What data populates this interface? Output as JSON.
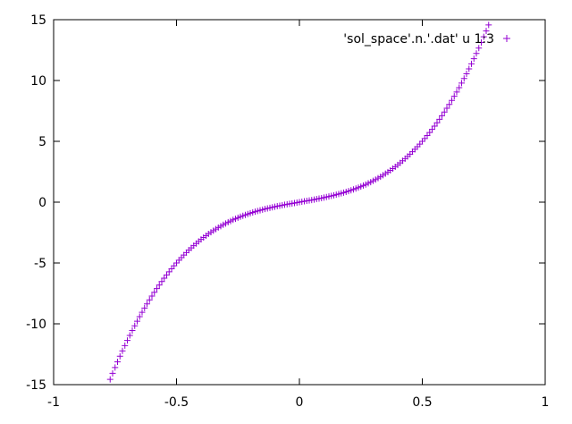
{
  "chart_data": {
    "type": "scatter",
    "marker": "+",
    "marker_color": "#9400d3",
    "xlim": [
      -1,
      1
    ],
    "ylim": [
      -15,
      15
    ],
    "grid": false,
    "legend_position": "top-right",
    "xticks": [
      -1,
      -0.5,
      0,
      0.5,
      1
    ],
    "xtick_labels": [
      "-1",
      "-0.5",
      "0",
      "0.5",
      "1"
    ],
    "yticks": [
      -15,
      -10,
      -5,
      0,
      5,
      10,
      15
    ],
    "ytick_labels": [
      "-15",
      "-10",
      "-5",
      "0",
      "5",
      "10",
      "15"
    ],
    "series": [
      {
        "name": "'sol_space'.n.'.dat' u 1:3",
        "x_range": [
          -0.79,
          0.79
        ],
        "x_step": 0.01,
        "y_formula": "26*x^3 + 3.5*x"
      }
    ]
  }
}
